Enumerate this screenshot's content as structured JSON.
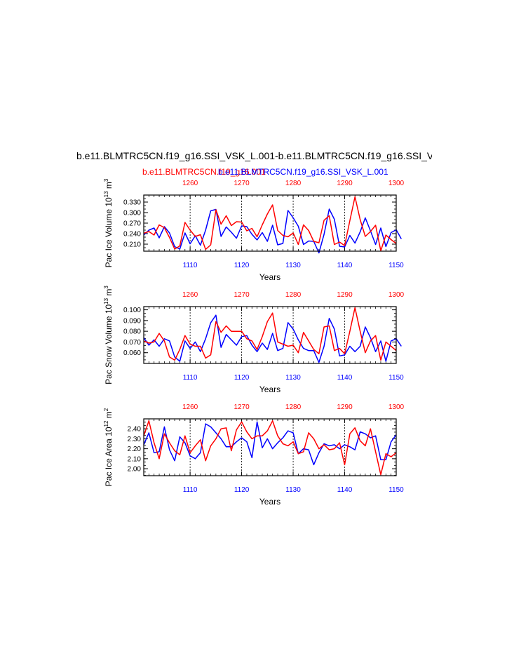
{
  "header": {
    "title": "b.e11.BLMTRC5CN.f19_g16.SSI_VSK_L.001-b.e11.BLMTRC5CN.f19_g16.SSI_V",
    "legend_red": "b.e11.BLMTRC5CN.f19_g16.001",
    "legend_blue": "b.e11.BLMTRC5CN.f19_g16.SSI_VSK_L.001"
  },
  "colors": {
    "series_red": "#ff0000",
    "series_blue": "#0000ff",
    "axis": "#000000"
  },
  "chart_data": [
    {
      "type": "line",
      "title": "",
      "ylabel_main": "Pac Ice Volume 10",
      "ylabel_exp": "13",
      "ylabel_unit": "m",
      "ylabel_unit_exp": "3",
      "xlabel": "Years",
      "xlim": [
        1101,
        1150
      ],
      "xlim_top": [
        1251,
        1300
      ],
      "ylim": [
        0.19,
        0.35
      ],
      "yticks": [
        "0.330",
        "0.300",
        "0.270",
        "0.240",
        "0.210"
      ],
      "ytick_values": [
        0.33,
        0.3,
        0.27,
        0.24,
        0.21
      ],
      "xticks_bottom": [
        "1110",
        "1120",
        "1130",
        "1140",
        "1150"
      ],
      "xtick_bottom_values": [
        1110,
        1120,
        1130,
        1140,
        1150
      ],
      "xticks_top": [
        "1260",
        "1270",
        "1280",
        "1290",
        "1300"
      ],
      "xtick_top_values": [
        1260,
        1270,
        1280,
        1290,
        1300
      ],
      "series": [
        {
          "name": "b.e11.BLMTRC5CN.f19_g16.SSI_VSK_L.001",
          "color": "#0000ff",
          "x_start": 1101,
          "values": [
            0.236,
            0.25,
            0.256,
            0.228,
            0.26,
            0.242,
            0.203,
            0.196,
            0.242,
            0.211,
            0.234,
            0.207,
            0.25,
            0.305,
            0.309,
            0.232,
            0.259,
            0.244,
            0.227,
            0.262,
            0.26,
            0.238,
            0.222,
            0.243,
            0.218,
            0.264,
            0.208,
            0.212,
            0.306,
            0.285,
            0.261,
            0.209,
            0.219,
            0.218,
            0.185,
            0.238,
            0.31,
            0.281,
            0.204,
            0.202,
            0.235,
            0.213,
            0.245,
            0.285,
            0.248,
            0.209,
            0.256,
            0.203,
            0.243,
            0.251,
            0.225
          ]
        },
        {
          "name": "b.e11.BLMTRC5CN.f19_g16.001",
          "color": "#ff0000",
          "x_start": 1251,
          "values": [
            0.241,
            0.246,
            0.236,
            0.265,
            0.257,
            0.229,
            0.196,
            0.205,
            0.272,
            0.25,
            0.232,
            0.237,
            0.195,
            0.208,
            0.308,
            0.267,
            0.291,
            0.263,
            0.274,
            0.273,
            0.248,
            0.255,
            0.231,
            0.265,
            0.296,
            0.322,
            0.249,
            0.235,
            0.231,
            0.242,
            0.209,
            0.265,
            0.249,
            0.218,
            0.214,
            0.278,
            0.291,
            0.209,
            0.216,
            0.206,
            0.277,
            0.345,
            0.28,
            0.232,
            0.246,
            0.264,
            0.191,
            0.236,
            0.223,
            0.212
          ]
        }
      ]
    },
    {
      "type": "line",
      "title": "",
      "ylabel_main": "Pac Snow Volume 10",
      "ylabel_exp": "13",
      "ylabel_unit": "m",
      "ylabel_unit_exp": "3",
      "xlabel": "Years",
      "xlim": [
        1101,
        1150
      ],
      "xlim_top": [
        1251,
        1300
      ],
      "ylim": [
        0.05,
        0.103
      ],
      "yticks": [
        "0.100",
        "0.090",
        "0.080",
        "0.070",
        "0.060"
      ],
      "ytick_values": [
        0.1,
        0.09,
        0.08,
        0.07,
        0.06
      ],
      "xticks_bottom": [
        "1110",
        "1120",
        "1130",
        "1140",
        "1150"
      ],
      "xtick_bottom_values": [
        1110,
        1120,
        1130,
        1140,
        1150
      ],
      "xticks_top": [
        "1260",
        "1270",
        "1280",
        "1290",
        "1300"
      ],
      "xtick_top_values": [
        1260,
        1270,
        1280,
        1290,
        1300
      ],
      "series": [
        {
          "name": "b.e11.BLMTRC5CN.f19_g16.SSI_VSK_L.001",
          "color": "#0000ff",
          "x_start": 1101,
          "values": [
            0.074,
            0.067,
            0.072,
            0.066,
            0.073,
            0.071,
            0.056,
            0.052,
            0.071,
            0.064,
            0.07,
            0.061,
            0.073,
            0.088,
            0.095,
            0.065,
            0.077,
            0.072,
            0.067,
            0.075,
            0.076,
            0.067,
            0.061,
            0.069,
            0.063,
            0.078,
            0.062,
            0.064,
            0.088,
            0.082,
            0.072,
            0.064,
            0.062,
            0.062,
            0.051,
            0.066,
            0.092,
            0.082,
            0.057,
            0.058,
            0.066,
            0.061,
            0.066,
            0.084,
            0.074,
            0.061,
            0.071,
            0.052,
            0.071,
            0.073,
            0.066
          ]
        },
        {
          "name": "b.e11.BLMTRC5CN.f19_g16.001",
          "color": "#ff0000",
          "x_start": 1251,
          "values": [
            0.071,
            0.069,
            0.07,
            0.078,
            0.071,
            0.056,
            0.053,
            0.063,
            0.076,
            0.068,
            0.066,
            0.066,
            0.055,
            0.058,
            0.089,
            0.079,
            0.085,
            0.08,
            0.08,
            0.08,
            0.073,
            0.071,
            0.063,
            0.075,
            0.089,
            0.097,
            0.07,
            0.068,
            0.066,
            0.067,
            0.06,
            0.079,
            0.071,
            0.063,
            0.059,
            0.084,
            0.085,
            0.062,
            0.064,
            0.059,
            0.08,
            0.102,
            0.08,
            0.06,
            0.071,
            0.076,
            0.053,
            0.07,
            0.066,
            0.062
          ]
        }
      ]
    },
    {
      "type": "line",
      "title": "",
      "ylabel_main": "Pac Ice Area 10",
      "ylabel_exp": "12",
      "ylabel_unit": "m",
      "ylabel_unit_exp": "2",
      "xlabel": "Years",
      "xlim": [
        1101,
        1150
      ],
      "xlim_top": [
        1251,
        1300
      ],
      "ylim": [
        1.93,
        2.5
      ],
      "yticks": [
        "2.40",
        "2.30",
        "2.20",
        "2.10",
        "2.00"
      ],
      "ytick_values": [
        2.4,
        2.3,
        2.2,
        2.1,
        2.0
      ],
      "xticks_bottom": [
        "1110",
        "1120",
        "1130",
        "1140",
        "1150"
      ],
      "xtick_bottom_values": [
        1110,
        1120,
        1130,
        1140,
        1150
      ],
      "xticks_top": [
        "1260",
        "1270",
        "1280",
        "1290",
        "1300"
      ],
      "xtick_top_values": [
        1260,
        1270,
        1280,
        1290,
        1300
      ],
      "series": [
        {
          "name": "b.e11.BLMTRC5CN.f19_g16.SSI_VSK_L.001",
          "color": "#0000ff",
          "x_start": 1101,
          "values": [
            2.24,
            2.36,
            2.16,
            2.17,
            2.42,
            2.19,
            2.08,
            2.32,
            2.26,
            2.13,
            2.1,
            2.16,
            2.45,
            2.42,
            2.36,
            2.3,
            2.22,
            2.22,
            2.27,
            2.31,
            2.27,
            2.11,
            2.47,
            2.21,
            2.3,
            2.2,
            2.26,
            2.31,
            2.38,
            2.36,
            2.15,
            2.2,
            2.19,
            2.04,
            2.16,
            2.25,
            2.23,
            2.24,
            2.2,
            2.24,
            2.22,
            2.19,
            2.37,
            2.35,
            2.31,
            2.33,
            2.09,
            2.09,
            2.27,
            2.34
          ]
        },
        {
          "name": "b.e11.BLMTRC5CN.f19_g16.001",
          "color": "#ff0000",
          "x_start": 1251,
          "values": [
            2.33,
            2.48,
            2.26,
            2.1,
            2.35,
            2.26,
            2.18,
            2.14,
            2.33,
            2.16,
            2.23,
            2.29,
            2.08,
            2.23,
            2.3,
            2.4,
            2.41,
            2.18,
            2.39,
            2.47,
            2.37,
            2.3,
            2.33,
            2.33,
            2.38,
            2.48,
            2.33,
            2.25,
            2.23,
            2.27,
            2.15,
            2.17,
            2.36,
            2.3,
            2.2,
            2.24,
            2.19,
            2.2,
            2.26,
            2.04,
            2.35,
            2.41,
            2.28,
            2.23,
            2.4,
            2.17,
            1.94,
            2.15,
            2.12,
            2.16
          ]
        }
      ]
    }
  ]
}
